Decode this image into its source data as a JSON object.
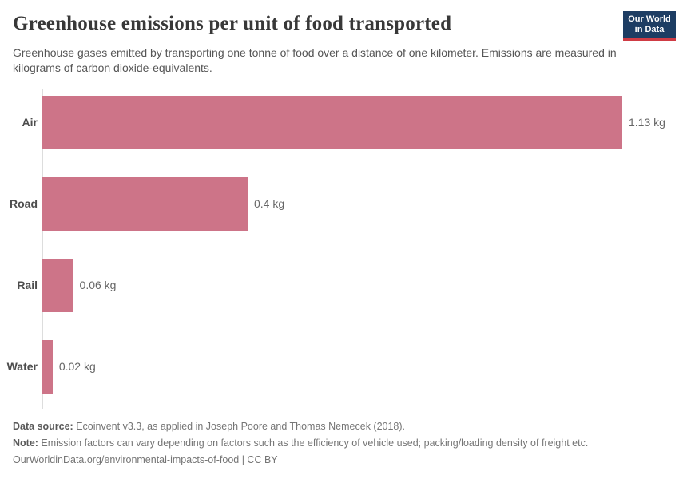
{
  "header": {
    "title": "Greenhouse emissions per unit of food transported",
    "subtitle": "Greenhouse gases emitted by transporting one tonne of food over a distance of one kilometer. Emissions are measured in kilograms of carbon dioxide-equivalents.",
    "logo": {
      "line1": "Our World",
      "line2": "in Data"
    }
  },
  "chart_data": {
    "type": "bar",
    "orientation": "horizontal",
    "title": "Greenhouse emissions per unit of food transported",
    "categories": [
      "Air",
      "Road",
      "Rail",
      "Water"
    ],
    "values": [
      1.13,
      0.4,
      0.06,
      0.02
    ],
    "value_labels": [
      "1.13 kg",
      "0.4 kg",
      "0.06 kg",
      "0.02 kg"
    ],
    "unit": "kg",
    "xlim": [
      0,
      1.13
    ],
    "grid": false,
    "legend": false
  },
  "footer": {
    "data_source_label": "Data source:",
    "data_source_text": " Ecoinvent v3.3, as applied in Joseph Poore and Thomas Nemecek (2018).",
    "note_label": "Note:",
    "note_text": " Emission factors can vary depending on factors such as the efficiency of vehicle used; packing/loading density of freight etc.",
    "license_line": "OurWorldinData.org/environmental-impacts-of-food | CC BY"
  },
  "colors": {
    "bar": "#cd7488",
    "axis_line": "#dddddd",
    "logo_background": "#1d3d63",
    "logo_accent": "#cf3b44"
  }
}
